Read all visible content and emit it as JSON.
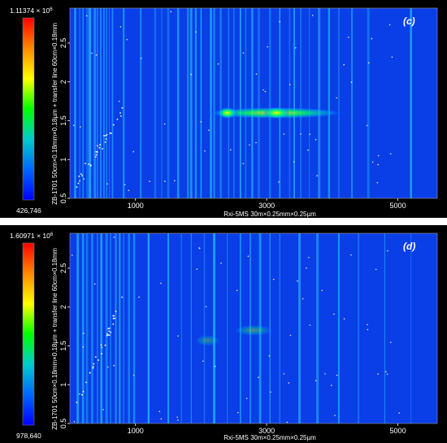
{
  "chart_data": [
    {
      "type": "heatmap",
      "panel_label": "(c)",
      "xlabel": "Rxi-5MS 30m×0.25mm×0.25µm",
      "ylabel": "ZB-1701 50cm×0.18mm×0.18µm + transfer line 60cm×0.18mm",
      "xlim": [
        0,
        5600
      ],
      "ylim": [
        0.5,
        2.95
      ],
      "x_ticks": [
        1000,
        3000,
        5000
      ],
      "y_ticks": [
        0.5,
        1.0,
        1.5,
        2.0,
        2.5
      ],
      "colorbar": {
        "max_label": "1.11374 × 10",
        "max_exp": "6",
        "min_label": "426,746",
        "colors": [
          "#ff0000",
          "#ff8800",
          "#ffff00",
          "#00ff00",
          "#00cccc",
          "#0066ff",
          "#0000ff"
        ]
      },
      "bands": [
        {
          "x_start": 2050,
          "x_end": 4200,
          "y": 1.6,
          "intensity": 0.8
        },
        {
          "x_start": 2250,
          "x_end": 2550,
          "y": 1.6,
          "intensity": 0.95
        },
        {
          "x_start": 2950,
          "x_end": 3350,
          "y": 1.6,
          "intensity": 0.95
        }
      ],
      "streaks": [
        80,
        150,
        200,
        260,
        290,
        310,
        380,
        420,
        470,
        520,
        560,
        600,
        650,
        820,
        1080,
        1300,
        1400,
        1500,
        1650,
        1800,
        1850,
        1920,
        2000,
        2150,
        2200,
        2300,
        2420,
        2500,
        2600,
        2680,
        2780,
        2880,
        3050,
        3200,
        3350,
        3420,
        3520,
        3650,
        3800,
        3950,
        4100,
        4300,
        4550,
        5200
      ]
    },
    {
      "type": "heatmap",
      "panel_label": "(d)",
      "xlabel": "Rxi-5MS 30m×0.25mm×0.25µm",
      "ylabel": "ZB-1701 50cm×0.18mm×0.18µm + transfer line 60cm×0.18mm",
      "xlim": [
        0,
        5600
      ],
      "ylim": [
        0.5,
        2.95
      ],
      "x_ticks": [
        1000,
        3000,
        5000
      ],
      "y_ticks": [
        0.5,
        1.0,
        1.5,
        2.0,
        2.5
      ],
      "colorbar": {
        "max_label": "1.60971 × 10",
        "max_exp": "6",
        "min_label": "978,640",
        "colors": [
          "#ff0000",
          "#ff8800",
          "#ffff00",
          "#00ff00",
          "#00cccc",
          "#0066ff",
          "#0000ff"
        ]
      },
      "bands": [
        {
          "x_start": 2500,
          "x_end": 3100,
          "y": 1.7,
          "intensity": 0.35
        },
        {
          "x_start": 1900,
          "x_end": 2300,
          "y": 1.57,
          "intensity": 0.3
        }
      ],
      "streaks": [
        120,
        200,
        260,
        340,
        420,
        480,
        560,
        620,
        700,
        760,
        820,
        900,
        980,
        1200,
        1500,
        1700,
        1850,
        2050,
        2200,
        2400,
        2600,
        2750,
        2900,
        3050,
        3200,
        3500,
        3760,
        3780,
        4100,
        4400,
        4800,
        5200
      ]
    }
  ]
}
